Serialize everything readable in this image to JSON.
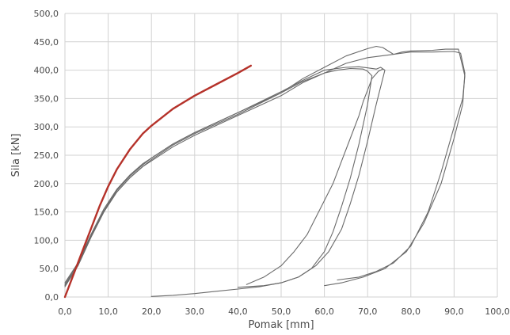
{
  "chart_data": {
    "type": "line",
    "title": "",
    "xlabel": "Pomak [mm]",
    "ylabel": "Sila [kN]",
    "xlim": [
      0,
      100
    ],
    "ylim": [
      0,
      500
    ],
    "xticks": [
      "0,0",
      "10,0",
      "20,0",
      "30,0",
      "40,0",
      "50,0",
      "60,0",
      "70,0",
      "80,0",
      "90,0",
      "100,0"
    ],
    "yticks": [
      "0,0",
      "50,0",
      "100,0",
      "150,0",
      "200,0",
      "250,0",
      "300,0",
      "350,0",
      "400,0",
      "450,0",
      "500,0"
    ],
    "grid": true,
    "legend": "none",
    "series": [
      {
        "color": "#b5322a",
        "x": [
          0,
          2,
          4,
          6,
          8,
          10,
          12,
          15,
          18,
          20,
          25,
          30,
          35,
          40,
          43
        ],
        "y": [
          0,
          40,
          80,
          120,
          160,
          195,
          225,
          260,
          288,
          302,
          332,
          355,
          375,
          395,
          408
        ]
      },
      {
        "color": "#6a6a6a",
        "x": [
          0,
          3,
          6,
          9,
          12,
          15,
          18,
          20,
          25,
          30,
          40,
          50,
          55,
          60,
          65,
          70,
          72,
          73.5,
          74.5,
          76,
          78,
          80,
          85,
          88,
          91,
          92.5,
          92,
          90,
          87,
          84,
          80,
          76,
          72,
          68,
          63
        ],
        "y": [
          25,
          60,
          110,
          155,
          190,
          215,
          235,
          245,
          270,
          290,
          325,
          360,
          385,
          405,
          425,
          438,
          442,
          440,
          435,
          428,
          432,
          434,
          435,
          437,
          437,
          390,
          350,
          300,
          220,
          150,
          90,
          60,
          45,
          35,
          30
        ]
      },
      {
        "color": "#6a6a6a",
        "x": [
          0,
          3,
          6,
          9,
          12,
          15,
          18,
          20,
          25,
          30,
          40,
          50,
          55,
          60,
          65,
          70,
          75,
          80,
          85,
          90,
          91.5,
          92.5,
          92,
          90,
          87,
          83,
          79,
          74,
          69,
          64,
          60
        ],
        "y": [
          20,
          55,
          105,
          150,
          185,
          210,
          230,
          240,
          265,
          285,
          320,
          355,
          378,
          395,
          412,
          422,
          427,
          432,
          432,
          433,
          430,
          395,
          340,
          280,
          200,
          130,
          80,
          50,
          35,
          25,
          20
        ]
      },
      {
        "color": "#6a6a6a",
        "x": [
          0,
          3,
          6,
          9,
          12,
          15,
          18,
          20,
          25,
          30,
          40,
          50,
          55,
          60,
          63,
          66,
          69,
          70,
          71,
          70,
          68,
          66,
          64,
          62,
          60,
          57,
          54,
          50,
          46,
          42,
          40
        ],
        "y": [
          18,
          55,
          105,
          150,
          185,
          210,
          230,
          242,
          268,
          288,
          322,
          360,
          380,
          395,
          400,
          403,
          402,
          398,
          390,
          340,
          270,
          210,
          160,
          115,
          80,
          50,
          35,
          25,
          20,
          18,
          17
        ]
      },
      {
        "color": "#6a6a6a",
        "x": [
          0,
          3,
          6,
          9,
          12,
          15,
          18,
          20,
          25,
          30,
          40,
          50,
          55,
          60,
          65,
          68,
          70,
          72,
          73,
          74,
          72,
          70,
          68,
          66,
          64,
          61,
          58,
          54,
          50,
          45,
          40,
          35,
          30,
          25,
          20
        ],
        "y": [
          22,
          58,
          108,
          152,
          188,
          213,
          233,
          245,
          270,
          290,
          325,
          362,
          382,
          400,
          405,
          406,
          404,
          402,
          405,
          400,
          340,
          275,
          215,
          165,
          120,
          80,
          55,
          35,
          25,
          18,
          14,
          10,
          6,
          3,
          1
        ]
      },
      {
        "color": "#6a6a6a",
        "x": [
          42,
          46,
          50,
          53,
          56,
          58,
          60,
          62,
          64,
          66,
          68,
          69,
          70,
          71,
          72.5,
          73.5
        ],
        "y": [
          22,
          35,
          55,
          80,
          110,
          140,
          170,
          200,
          240,
          280,
          320,
          345,
          365,
          385,
          398,
          402
        ]
      }
    ]
  }
}
